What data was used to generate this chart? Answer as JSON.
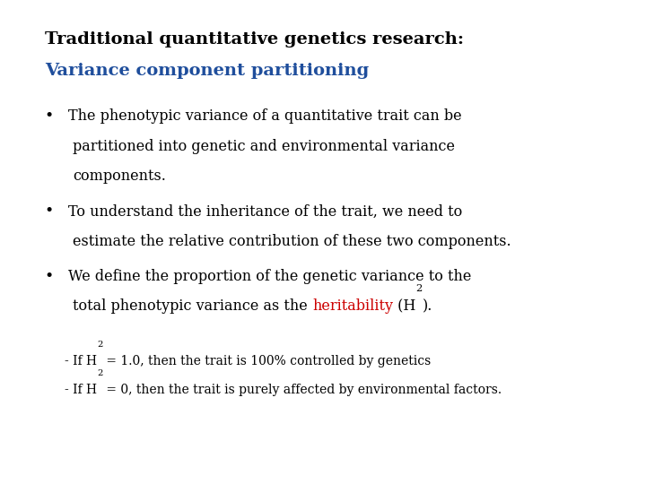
{
  "title_line1": "Traditional quantitative genetics research:",
  "title_line2": "Variance component partitioning",
  "title_line1_color": "#000000",
  "title_line2_color": "#1F4E9C",
  "bullet1_line1": "The phenotypic variance of a quantitative trait can be",
  "bullet1_line2": "partitioned into genetic and environmental variance",
  "bullet1_line3": "components.",
  "bullet2_line1": "To understand the inheritance of the trait, we need to",
  "bullet2_line2": "estimate the relative contribution of these two components.",
  "bullet3_line1": "We define the proportion of the genetic variance to the",
  "bullet3_line2a": "total phenotypic variance as the ",
  "bullet3_heritability": "heritability",
  "bullet3_line2b": " (H",
  "bullet3_sup": "2",
  "bullet3_line2c": ").",
  "heritability_color": "#CC0000",
  "note1_pre": "- If H",
  "note1_sup": "2",
  "note1_post": " = 1.0, then the trait is 100% controlled by genetics",
  "note2_pre": "- If H",
  "note2_sup": "2",
  "note2_post": " = 0, then the trait is purely affected by environmental factors.",
  "background_color": "#FFFFFF",
  "text_color": "#000000",
  "title_fontsize": 14,
  "bullet_fontsize": 11.5,
  "note_fontsize": 10,
  "font_family": "serif"
}
